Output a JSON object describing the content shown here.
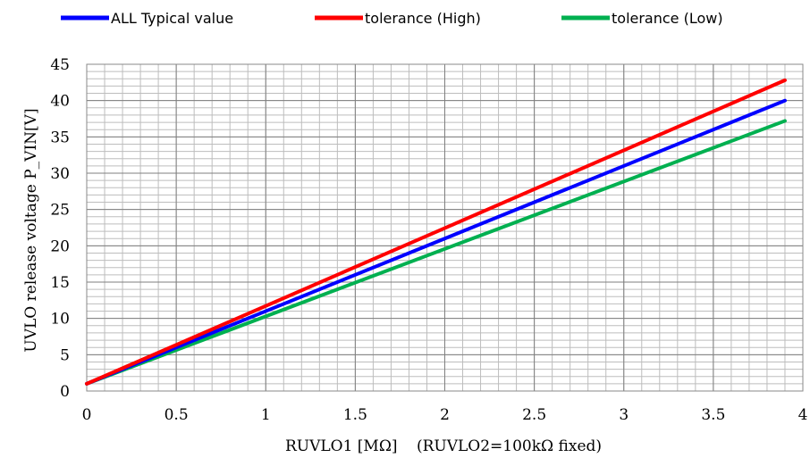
{
  "chart_data": {
    "type": "line",
    "xlabel_main": "RUVLO1 [MΩ]",
    "xlabel_note": "(RUVLO2=100kΩ fixed)",
    "ylabel": "UVLO release voltage P_VIN[V]",
    "xlim": [
      0,
      4
    ],
    "ylim": [
      0,
      45
    ],
    "x_ticks": [
      "0",
      "0.5",
      "1",
      "1.5",
      "2",
      "2.5",
      "3",
      "3.5",
      "4"
    ],
    "y_ticks": [
      "0",
      "5",
      "10",
      "15",
      "20",
      "25",
      "30",
      "35",
      "40",
      "45"
    ],
    "grid": true,
    "legend_position": "top",
    "series": [
      {
        "name": "ALL Typical value",
        "color": "#0000ff",
        "x": [
          0,
          3.9
        ],
        "y": [
          1.0,
          40.0
        ]
      },
      {
        "name": "tolerance (High)",
        "color": "#ff0000",
        "x": [
          0,
          3.9
        ],
        "y": [
          1.0,
          42.8
        ]
      },
      {
        "name": "tolerance (Low)",
        "color": "#00b050",
        "x": [
          0,
          3.9
        ],
        "y": [
          1.0,
          37.2
        ]
      }
    ]
  }
}
